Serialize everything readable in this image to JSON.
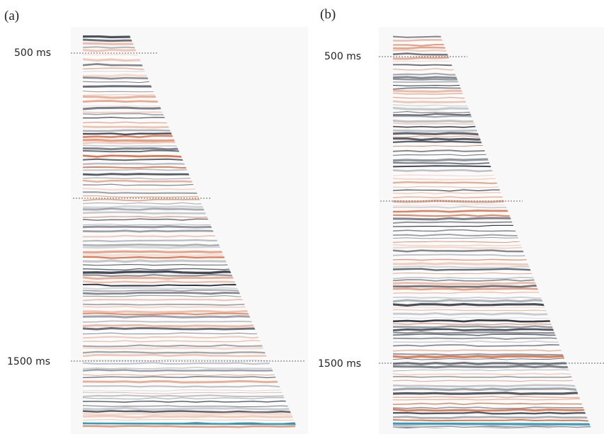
{
  "panels": [
    {
      "label": "(a)",
      "markers": [
        "500 ms",
        "1500 ms"
      ]
    },
    {
      "label": "(b)",
      "markers": [
        "500 ms",
        "1500 ms"
      ]
    }
  ]
}
